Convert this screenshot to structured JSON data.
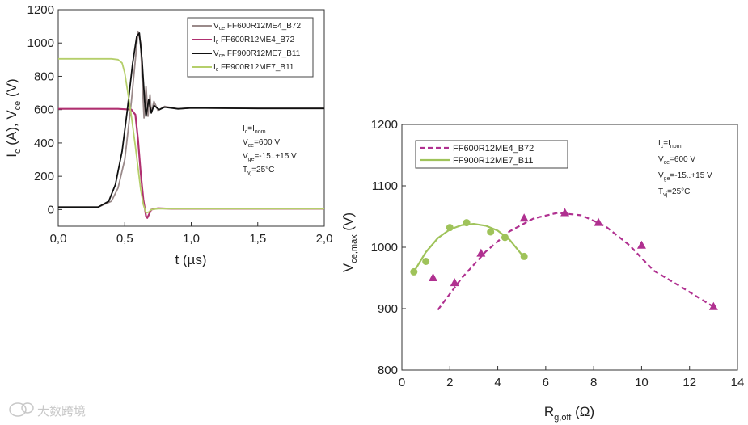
{
  "chart_data": [
    {
      "type": "line",
      "ylabel_parts": [
        "I",
        "c",
        " (A), V",
        "ce",
        " (V)"
      ],
      "xlabel": "t (µs)",
      "xlim": [
        0,
        2
      ],
      "ylim": [
        -100,
        1200
      ],
      "xticks": [
        0,
        0.5,
        1,
        1.5,
        2
      ],
      "xtick_labels": [
        "0,0",
        "0,5",
        "1,0",
        "1,5",
        "2,0"
      ],
      "yticks": [
        0,
        200,
        400,
        600,
        800,
        1000,
        1200
      ],
      "ytick_labels": [
        "0",
        "200",
        "400",
        "600",
        "800",
        "1000",
        "1200"
      ],
      "legend": [
        {
          "sym": "V",
          "sub": "ce",
          "label": "FF600R12ME4_B72",
          "color": "#9a8a8a"
        },
        {
          "sym": "I",
          "sub": "c",
          "label": "FF600R12ME4_B72",
          "color": "#b03070"
        },
        {
          "sym": "V",
          "sub": "ce",
          "label": "FF900R12ME7_B11",
          "color": "#111111"
        },
        {
          "sym": "I",
          "sub": "c",
          "label": "FF900R12ME7_B11",
          "color": "#b5cf6b"
        }
      ],
      "series": [
        {
          "name": "Vce FF600R12ME4_B72",
          "color": "#9a8a8a",
          "x": [
            0,
            0.3,
            0.4,
            0.45,
            0.5,
            0.55,
            0.58,
            0.6,
            0.62,
            0.63,
            0.645,
            0.66,
            0.675,
            0.69,
            0.7,
            0.72,
            0.75,
            0.8,
            0.9,
            1.0,
            1.5,
            2.0
          ],
          "y": [
            15,
            15,
            50,
            130,
            300,
            650,
            900,
            1070,
            1000,
            800,
            550,
            740,
            560,
            690,
            580,
            650,
            595,
            620,
            605,
            610,
            607,
            607
          ]
        },
        {
          "name": "Ic FF600R12ME4_B72",
          "color": "#b03070",
          "x": [
            0,
            0.45,
            0.55,
            0.58,
            0.6,
            0.62,
            0.64,
            0.66,
            0.67,
            0.7,
            0.75,
            0.85,
            1.0,
            1.5,
            2.0
          ],
          "y": [
            605,
            605,
            600,
            570,
            420,
            220,
            60,
            -40,
            -50,
            0,
            8,
            5,
            5,
            5,
            5
          ]
        },
        {
          "name": "Vce FF900R12ME7_B11",
          "color": "#111111",
          "x": [
            0,
            0.3,
            0.38,
            0.43,
            0.48,
            0.52,
            0.56,
            0.59,
            0.61,
            0.63,
            0.65,
            0.66,
            0.68,
            0.7,
            0.72,
            0.76,
            0.8,
            0.9,
            1.0,
            1.5,
            2.0
          ],
          "y": [
            15,
            15,
            50,
            150,
            350,
            600,
            880,
            1040,
            1060,
            900,
            650,
            560,
            660,
            580,
            625,
            600,
            615,
            605,
            610,
            607,
            607
          ]
        },
        {
          "name": "Ic FF900R12ME7_B11",
          "color": "#b5cf6b",
          "x": [
            0,
            0.3,
            0.4,
            0.45,
            0.48,
            0.5,
            0.52,
            0.55,
            0.58,
            0.6,
            0.62,
            0.64,
            0.66,
            0.68,
            0.7,
            0.75,
            0.85,
            1.0,
            1.5,
            2.0
          ],
          "y": [
            905,
            905,
            905,
            900,
            880,
            820,
            720,
            560,
            380,
            250,
            120,
            30,
            -20,
            -15,
            0,
            5,
            5,
            5,
            5,
            5
          ]
        }
      ],
      "annotations": [
        [
          [
            "I",
            ""
          ],
          [
            "c",
            "sub"
          ],
          [
            "=I",
            ""
          ],
          [
            "nom",
            "sub"
          ]
        ],
        [
          [
            "V",
            ""
          ],
          [
            "ce",
            "sub"
          ],
          [
            "=600 V",
            ""
          ]
        ],
        [
          [
            "V",
            ""
          ],
          [
            "ge",
            "sub"
          ],
          [
            "=-15..+15 V",
            ""
          ]
        ],
        [
          [
            "T",
            ""
          ],
          [
            "vj",
            "sub"
          ],
          [
            "=25°C",
            ""
          ]
        ]
      ]
    },
    {
      "type": "scatter",
      "ylabel_parts": [
        "V",
        "ce,max",
        " (V)"
      ],
      "xlabel_parts": [
        "R",
        "g,off",
        " (Ω)"
      ],
      "xlim": [
        0,
        14
      ],
      "ylim": [
        800,
        1200
      ],
      "xticks": [
        0,
        2,
        4,
        6,
        8,
        10,
        12,
        14
      ],
      "xtick_labels": [
        "0",
        "2",
        "4",
        "6",
        "8",
        "10",
        "12",
        "14"
      ],
      "yticks": [
        800,
        900,
        1000,
        1100,
        1200
      ],
      "ytick_labels": [
        "800",
        "900",
        "1000",
        "1100",
        "1200"
      ],
      "legend": [
        {
          "label": "FF600R12ME4_B72",
          "color": "#b03090",
          "style": "dashed"
        },
        {
          "label": "FF900R12ME7_B11",
          "color": "#9fc35a",
          "style": "solid"
        }
      ],
      "series": [
        {
          "name": "FF600R12ME4_B72",
          "color": "#b03090",
          "marker": "triangle",
          "x": [
            1.3,
            2.2,
            3.3,
            5.1,
            6.8,
            8.2,
            10.0,
            13.0
          ],
          "y": [
            950,
            942,
            990,
            1047,
            1056,
            1040,
            1003,
            903
          ],
          "fit_x": [
            1.5,
            2.5,
            3.5,
            4.5,
            5.5,
            6.5,
            7.5,
            8.5,
            9.5,
            10.5,
            11.5,
            12.5,
            13.0
          ],
          "fit_y": [
            898,
            950,
            993,
            1026,
            1047,
            1056,
            1052,
            1034,
            1003,
            962,
            939,
            915,
            903
          ]
        },
        {
          "name": "FF900R12ME7_B11",
          "color": "#9fc35a",
          "marker": "circle",
          "x": [
            0.5,
            1.0,
            2.0,
            2.7,
            3.7,
            4.3,
            5.1
          ],
          "y": [
            960,
            977,
            1032,
            1040,
            1025,
            1016,
            985
          ],
          "fit_x": [
            0.5,
            1.0,
            1.5,
            2.0,
            2.5,
            3.0,
            3.5,
            4.0,
            4.5,
            5.0
          ],
          "fit_y": [
            960,
            992,
            1015,
            1029,
            1036,
            1038,
            1035,
            1027,
            1012,
            988
          ]
        }
      ],
      "annotations": [
        [
          [
            "I",
            ""
          ],
          [
            "c",
            "sub"
          ],
          [
            "=I",
            ""
          ],
          [
            "nom",
            "sub"
          ]
        ],
        [
          [
            "V",
            ""
          ],
          [
            "ce",
            "sub"
          ],
          [
            "=600 V",
            ""
          ]
        ],
        [
          [
            "V",
            ""
          ],
          [
            "ge",
            "sub"
          ],
          [
            "=-15..+15 V",
            ""
          ]
        ],
        [
          [
            "T",
            ""
          ],
          [
            "vj",
            "sub"
          ],
          [
            "=25°C",
            ""
          ]
        ]
      ]
    }
  ],
  "watermark": {
    "text": "大数跨境",
    "icon": "chat-bubble-icon"
  }
}
